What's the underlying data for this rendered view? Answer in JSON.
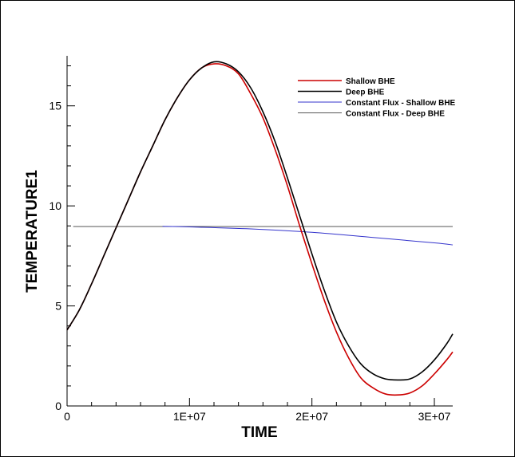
{
  "chart_data": {
    "type": "line",
    "xlabel": "TIME",
    "ylabel": "TEMPERATURE1",
    "xlim": [
      0,
      31500000
    ],
    "ylim": [
      0,
      17.5
    ],
    "x_ticks": [
      0,
      10000000,
      20000000,
      30000000
    ],
    "x_tick_labels": [
      "0",
      "1E+07",
      "2E+07",
      "3E+07"
    ],
    "y_ticks": [
      0,
      5,
      10,
      15
    ],
    "y_tick_labels": [
      "0",
      "5",
      "10",
      "15"
    ],
    "grid": false,
    "legend_position": "top-right",
    "series": [
      {
        "name": "Shallow BHE",
        "color": "#cc0000",
        "x": [
          0,
          1000000,
          2000000,
          3000000,
          4000000,
          5000000,
          6000000,
          7000000,
          8000000,
          9000000,
          10000000,
          11000000,
          12000000,
          13000000,
          14000000,
          15000000,
          16000000,
          17000000,
          18000000,
          19000000,
          20000000,
          21000000,
          22000000,
          23000000,
          24000000,
          25000000,
          26000000,
          27000000,
          28000000,
          29000000,
          30000000,
          31000000,
          31500000
        ],
        "y": [
          3.8,
          4.8,
          6.1,
          7.5,
          8.9,
          10.3,
          11.7,
          13.0,
          14.3,
          15.4,
          16.3,
          16.9,
          17.1,
          17.0,
          16.6,
          15.6,
          14.4,
          12.8,
          11.0,
          9.0,
          7.1,
          5.3,
          3.7,
          2.4,
          1.4,
          0.9,
          0.6,
          0.55,
          0.65,
          1.0,
          1.6,
          2.3,
          2.7
        ]
      },
      {
        "name": "Deep BHE",
        "color": "#000000",
        "x": [
          0,
          1000000,
          2000000,
          3000000,
          4000000,
          5000000,
          6000000,
          7000000,
          8000000,
          9000000,
          10000000,
          11000000,
          12000000,
          13000000,
          14000000,
          15000000,
          16000000,
          17000000,
          18000000,
          19000000,
          20000000,
          21000000,
          22000000,
          23000000,
          24000000,
          25000000,
          26000000,
          27000000,
          28000000,
          29000000,
          30000000,
          31000000,
          31500000
        ],
        "y": [
          3.8,
          4.8,
          6.1,
          7.5,
          8.9,
          10.3,
          11.7,
          13.0,
          14.3,
          15.4,
          16.3,
          16.9,
          17.2,
          17.1,
          16.7,
          15.9,
          14.7,
          13.2,
          11.4,
          9.5,
          7.6,
          5.8,
          4.2,
          3.0,
          2.1,
          1.6,
          1.35,
          1.3,
          1.35,
          1.7,
          2.3,
          3.1,
          3.6
        ]
      },
      {
        "name": "Constant Flux - Shallow BHE",
        "color": "#3333cc",
        "x": [
          7800000,
          10000000,
          15000000,
          20000000,
          25000000,
          30000000,
          31500000
        ],
        "y": [
          8.98,
          8.95,
          8.85,
          8.68,
          8.42,
          8.15,
          8.05
        ]
      },
      {
        "name": "Constant Flux - Deep BHE",
        "color": "#555555",
        "x": [
          500000,
          31500000
        ],
        "y": [
          8.97,
          8.97
        ]
      }
    ]
  }
}
